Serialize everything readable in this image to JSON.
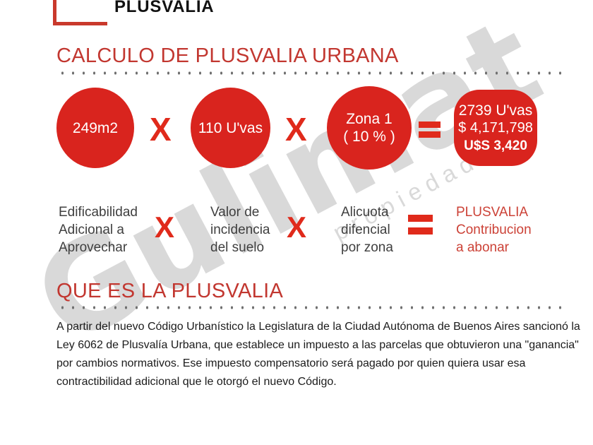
{
  "logo": {
    "text": "PLUSVALIA"
  },
  "watermark": {
    "brand": "Gulimat",
    "sub": "propiedades"
  },
  "sections": {
    "calc": {
      "title": "CALCULO DE PLUSVALIA URBANA"
    },
    "about": {
      "title": "QUE ES LA PLUSVALIA"
    }
  },
  "formula": {
    "multiply_sign": "X",
    "factors": [
      {
        "lines": [
          "249m2"
        ]
      },
      {
        "lines": [
          "110 U'vas"
        ]
      },
      {
        "lines": [
          "Zona 1",
          "( 10 % )"
        ]
      }
    ],
    "result": {
      "uvas": "2739 U'vas",
      "pesos": "$ 4,171,798",
      "dollars": "U$S 3,420"
    }
  },
  "legend": {
    "factors": [
      {
        "lines": [
          "Edificabilidad",
          "Adicional a",
          "Aprovechar"
        ]
      },
      {
        "lines": [
          "Valor de",
          "incidencia",
          "del suelo"
        ]
      },
      {
        "lines": [
          "Alicuota",
          "difencial",
          "por zona"
        ]
      }
    ],
    "result": {
      "lines": [
        "PLUSVALIA",
        "Contribucion",
        "a abonar"
      ]
    }
  },
  "paragraph": {
    "lines": [
      "A partir del nuevo Código Urbanístico la Legislatura de la Ciudad Autónoma de Buenos Aires sancionó la",
      "Ley 6062 de Plusvalía Urbana, que establece un impuesto a las parcelas que obtuvieron una \"ganancia\"",
      "por cambios normativos. Ese impuesto compensatorio será pagado por quien quiera usar esa",
      "contractibilidad adicional que le otorgó el nuevo Código."
    ]
  },
  "colors": {
    "red": "#d9241e",
    "x_red": "#e02a1b",
    "heading_red": "#c23730",
    "legend_red": "#cc4237",
    "label_gray": "#3f3f3f",
    "dot_gray": "#6f6f6f",
    "logo_red": "#c9392c"
  }
}
